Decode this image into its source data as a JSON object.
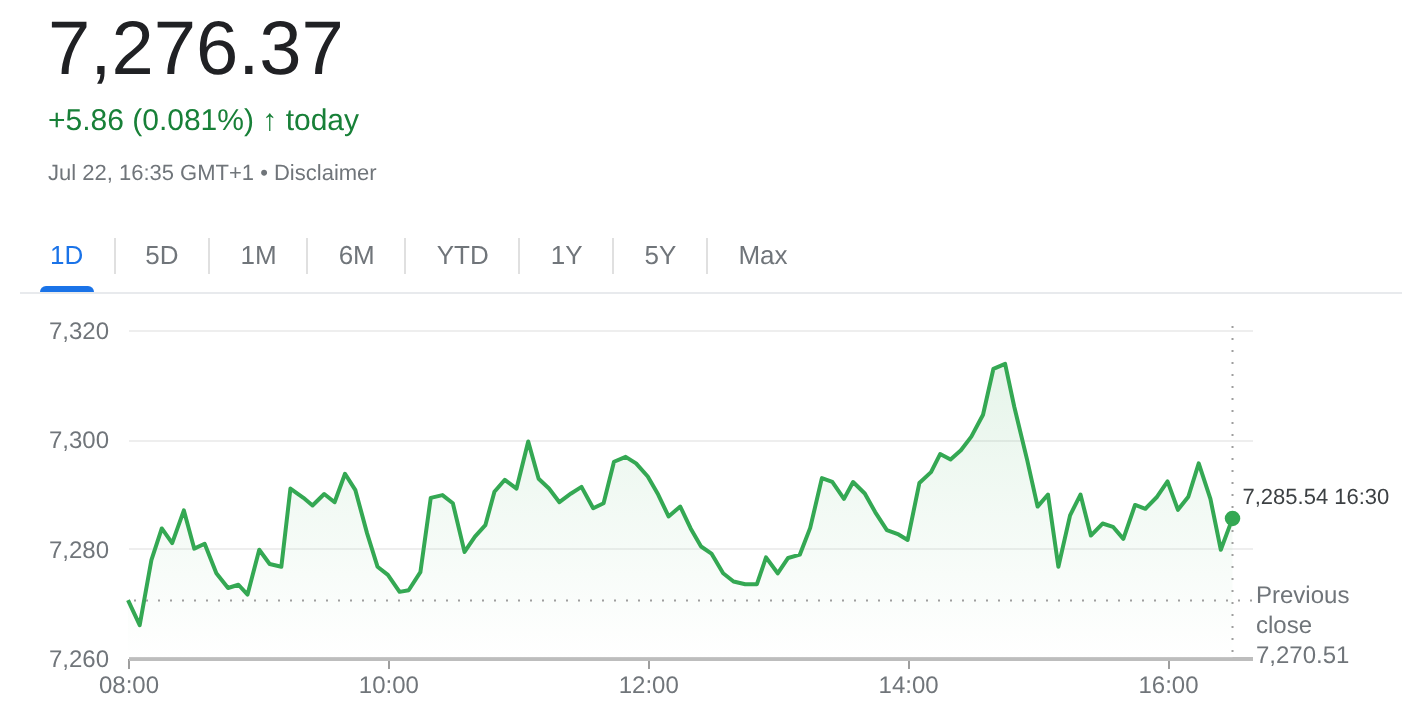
{
  "chart_data": {
    "type": "area",
    "title": "7,276.37",
    "subtitle": "+5.86 (0.081%) ↑ today",
    "annotations": [
      "Jul 22, 16:35 GMT+1 • Disclaimer",
      "1D",
      "5D",
      "1M",
      "6M",
      "YTD",
      "1Y",
      "5Y",
      "Max",
      {
        "text": "7,285.54 16:30",
        "x": 16.5,
        "y": 7285.54
      }
    ],
    "x": [
      8.0,
      8.09,
      8.18,
      8.26,
      8.34,
      8.43,
      8.51,
      8.59,
      8.68,
      8.77,
      8.85,
      8.92,
      9.01,
      9.09,
      9.18,
      9.25,
      9.35,
      9.42,
      9.51,
      9.59,
      9.67,
      9.75,
      9.84,
      9.92,
      10.0,
      10.09,
      10.16,
      10.25,
      10.33,
      10.42,
      10.5,
      10.59,
      10.67,
      10.75,
      10.82,
      10.9,
      10.99,
      11.08,
      11.16,
      11.24,
      11.32,
      11.41,
      11.49,
      11.58,
      11.66,
      11.74,
      11.83,
      11.91,
      12.0,
      12.08,
      12.16,
      12.25,
      12.33,
      12.41,
      12.49,
      12.58,
      12.66,
      12.75,
      12.84,
      12.91,
      13.0,
      13.08,
      13.17,
      13.25,
      13.34,
      13.42,
      13.51,
      13.58,
      13.67,
      13.75,
      13.84,
      13.93,
      14.0,
      14.09,
      14.18,
      14.25,
      14.33,
      14.41,
      14.49,
      14.58,
      14.66,
      14.75,
      14.82,
      14.92,
      15.0,
      15.08,
      15.16,
      15.25,
      15.33,
      15.41,
      15.5,
      15.58,
      15.66,
      15.75,
      15.83,
      15.92,
      16.0,
      16.08,
      16.16,
      16.24,
      16.33,
      16.41,
      16.5
    ],
    "series": [
      {
        "color": "#34a853",
        "values": [
          7270.6,
          7266.0,
          7277.9,
          7283.7,
          7281.0,
          7287.0,
          7280.0,
          7280.9,
          7275.5,
          7272.8,
          7273.4,
          7271.6,
          7279.8,
          7277.2,
          7276.7,
          7291.0,
          7289.3,
          7287.9,
          7290.0,
          7288.5,
          7293.7,
          7290.7,
          7282.8,
          7276.7,
          7275.2,
          7272.1,
          7272.4,
          7275.7,
          7289.3,
          7289.8,
          7288.3,
          7279.4,
          7282.2,
          7284.3,
          7290.4,
          7292.6,
          7291.0,
          7299.6,
          7292.8,
          7291.0,
          7288.5,
          7290.1,
          7291.3,
          7287.4,
          7288.3,
          7295.9,
          7296.8,
          7295.6,
          7293.2,
          7289.9,
          7285.9,
          7287.7,
          7283.7,
          7280.4,
          7279.1,
          7275.5,
          7274.0,
          7273.5,
          7273.5,
          7278.4,
          7275.5,
          7278.3,
          7278.9,
          7283.8,
          7292.9,
          7292.2,
          7289.1,
          7292.2,
          7290.1,
          7286.7,
          7283.4,
          7282.6,
          7281.6,
          7292.0,
          7294.0,
          7297.3,
          7296.3,
          7298.0,
          7300.5,
          7304.5,
          7312.9,
          7313.8,
          7306.0,
          7296.2,
          7287.7,
          7289.9,
          7276.7,
          7286.1,
          7289.9,
          7282.4,
          7284.6,
          7284.0,
          7281.8,
          7288.0,
          7287.3,
          7289.5,
          7292.3,
          7287.1,
          7289.5,
          7295.6,
          7289.1,
          7279.8,
          7285.54
        ]
      }
    ],
    "xlim": [
      8,
      16.65
    ],
    "xticks": [
      {
        "value": 8,
        "label": "08:00"
      },
      {
        "value": 10,
        "label": "10:00"
      },
      {
        "value": 12,
        "label": "12:00"
      },
      {
        "value": 14,
        "label": "14:00"
      },
      {
        "value": 16,
        "label": "16:00"
      }
    ],
    "ylim": [
      7260,
      7320
    ],
    "yticks": [
      {
        "value": 7260,
        "label": "7,260"
      },
      {
        "value": 7280,
        "label": "7,280"
      },
      {
        "value": 7300,
        "label": "7,300"
      },
      {
        "value": 7320,
        "label": "7,320"
      }
    ],
    "grid": "y",
    "ref_lines": [
      {
        "axis": "y",
        "value": 7270.51,
        "label": "Previous close 7,270.51",
        "line_style": "dotted",
        "color": "#9e9e9e"
      },
      {
        "axis": "x",
        "value": 16.5,
        "line_style": "dotted",
        "color": "#9e9e9e"
      }
    ]
  }
}
